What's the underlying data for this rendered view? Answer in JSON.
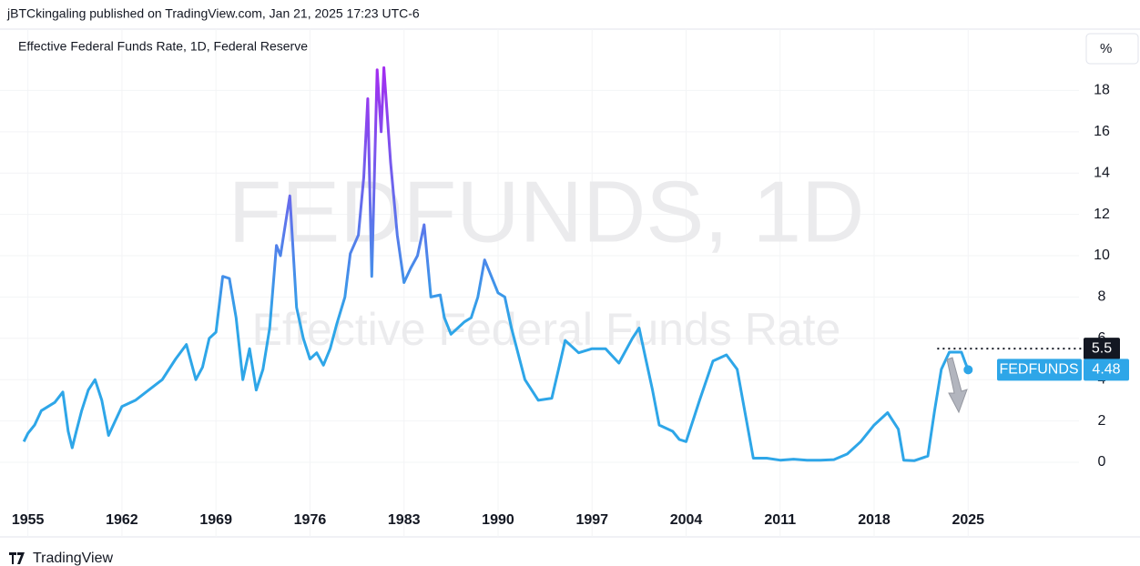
{
  "header": "jBTCkingaling published on TradingView.com, Jan 21, 2025 17:23 UTC-6",
  "footer": "TradingView",
  "chart_data": {
    "type": "line",
    "title": "Effective Federal Funds Rate, 1D, Federal Reserve",
    "unit_button": "%",
    "watermark": "FEDFUNDS, 1D",
    "watermark_subtitle": "Effective Federal Funds Rate",
    "x": [
      1954.7,
      1955,
      1955.5,
      1956,
      1957,
      1957.6,
      1958,
      1958.3,
      1958.6,
      1959,
      1959.5,
      1960,
      1960.5,
      1960.8,
      1961,
      1961.5,
      1962,
      1963,
      1964,
      1965,
      1966,
      1966.8,
      1967.5,
      1968,
      1968.5,
      1969,
      1969.5,
      1970,
      1970.5,
      1971,
      1971.5,
      1972,
      1972.5,
      1973,
      1973.5,
      1973.8,
      1974.5,
      1975,
      1975.5,
      1976,
      1976.5,
      1977,
      1977.5,
      1978,
      1978.6,
      1979,
      1979.6,
      1980,
      1980.3,
      1980.6,
      1981,
      1981.3,
      1981.5,
      1982,
      1982.5,
      1983,
      1983.5,
      1984,
      1984.5,
      1985,
      1985.7,
      1986,
      1986.5,
      1987,
      1987.5,
      1988,
      1988.5,
      1989,
      1989.5,
      1990,
      1990.5,
      1991,
      1992,
      1993,
      1994,
      1994.5,
      1995,
      1996,
      1997,
      1998,
      1999,
      2000,
      2000.5,
      2001,
      2001.5,
      2002,
      2003,
      2003.5,
      2004,
      2005,
      2006,
      2007,
      2007.8,
      2008.5,
      2009,
      2010,
      2011,
      2012,
      2013,
      2014,
      2015,
      2016,
      2017,
      2018,
      2019,
      2019.8,
      2020.2,
      2021,
      2022,
      2022.5,
      2023,
      2023.6,
      2024.5,
      2024.8,
      2025
    ],
    "series": [
      {
        "name": "FEDFUNDS",
        "color": "#2ea6e8",
        "high_color": "#a22cf0",
        "values": [
          1.0,
          1.4,
          1.8,
          2.5,
          2.9,
          3.4,
          1.5,
          0.7,
          1.5,
          2.5,
          3.5,
          4.0,
          3.0,
          2.0,
          1.3,
          2.0,
          2.7,
          3.0,
          3.5,
          4.0,
          5.0,
          5.7,
          4.0,
          4.6,
          6.0,
          6.3,
          9.0,
          8.9,
          7.0,
          4.0,
          5.5,
          3.5,
          4.5,
          6.5,
          10.5,
          10.0,
          12.9,
          7.5,
          6.0,
          5.0,
          5.3,
          4.7,
          5.5,
          6.7,
          8.0,
          10.1,
          11.0,
          13.8,
          17.6,
          9.0,
          19.0,
          16.0,
          19.1,
          14.5,
          11.0,
          8.7,
          9.4,
          10.0,
          11.5,
          8.0,
          8.1,
          7.0,
          6.2,
          6.5,
          6.8,
          7.0,
          8.0,
          9.8,
          9.0,
          8.2,
          8.0,
          6.5,
          4.0,
          3.0,
          3.1,
          4.5,
          5.9,
          5.3,
          5.5,
          5.5,
          4.8,
          6.0,
          6.5,
          5.0,
          3.5,
          1.8,
          1.5,
          1.1,
          1.0,
          3.0,
          4.9,
          5.2,
          4.5,
          2.0,
          0.2,
          0.2,
          0.1,
          0.15,
          0.1,
          0.1,
          0.13,
          0.4,
          1.0,
          1.8,
          2.4,
          1.6,
          0.1,
          0.08,
          0.3,
          2.5,
          4.5,
          5.33,
          5.33,
          4.8,
          4.48
        ]
      }
    ],
    "last_value": {
      "name": "FEDFUNDS",
      "value": 4.48
    },
    "price_line": {
      "label": "5.5",
      "value": 5.5
    },
    "xlim": [
      1953.6,
      2033.25
    ],
    "xticks": [
      1955,
      1962,
      1969,
      1976,
      1983,
      1990,
      1997,
      2004,
      2011,
      2018,
      2025
    ],
    "ylim": [
      -1.85,
      20.97
    ],
    "yticks": [
      0,
      2,
      4,
      6,
      8,
      10,
      12,
      14,
      16,
      18
    ],
    "grid": true
  }
}
